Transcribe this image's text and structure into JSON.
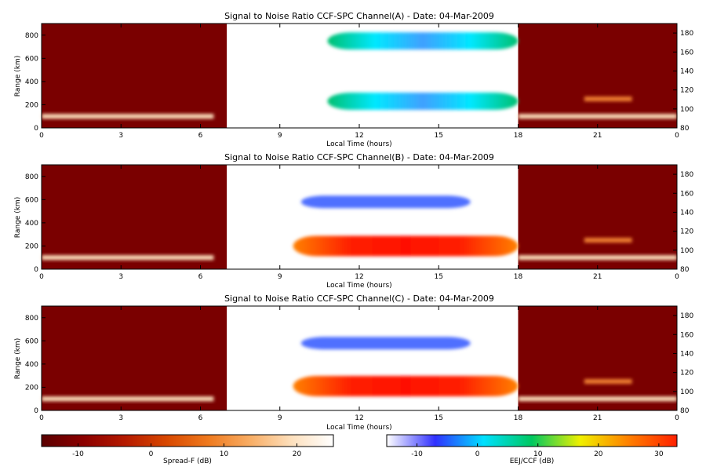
{
  "colors": {
    "night_background": "#7a0000",
    "day_background": "#ffffff",
    "spread_f_scale": [
      "#5a0000",
      "#8b0000",
      "#b51a00",
      "#d84800",
      "#ef7a1e",
      "#f8ad64",
      "#fde0bd",
      "#ffffff"
    ],
    "eej_ccf_scale": [
      "#ffffff",
      "#3030ff",
      "#00e0ff",
      "#00c860",
      "#f0f000",
      "#ff8000",
      "#ff2000"
    ]
  },
  "chart_data": [
    {
      "type": "heatmap",
      "title": "Signal to Noise Ratio CCF-SPC Channel(A) - Date: 04-Mar-2009",
      "xlabel": "Local Time (hours)",
      "ylabel": "Range (km)",
      "xlim": [
        0,
        24
      ],
      "ylim": [
        0,
        900
      ],
      "y2lim": [
        80,
        190
      ],
      "x_ticks": [
        "0",
        "3",
        "6",
        "9",
        "12",
        "15",
        "18",
        "21",
        "0"
      ],
      "y_ticks": [
        "0",
        "200",
        "400",
        "600",
        "800"
      ],
      "y2_ticks": [
        "80",
        "100",
        "120",
        "140",
        "160",
        "180"
      ],
      "day_window_hours": [
        7,
        18
      ],
      "night_echoes": [
        {
          "t0": 0,
          "t1": 6.5,
          "range_km": 100,
          "spread_f_db": 22
        },
        {
          "t0": 18,
          "t1": 24,
          "range_km": 100,
          "spread_f_db": 22
        },
        {
          "t0": 20.5,
          "t1": 22.3,
          "range_km": 250,
          "spread_f_db": 16
        }
      ],
      "day_echoes": [
        {
          "t0": 10.8,
          "t1": 18,
          "range_km": 750,
          "eej_ccf_db": 5
        },
        {
          "t0": 10.8,
          "t1": 18,
          "range_km": 230,
          "eej_ccf_db": 5
        }
      ]
    },
    {
      "type": "heatmap",
      "title": "Signal to Noise Ratio CCF-SPC Channel(B) - Date: 04-Mar-2009",
      "xlabel": "Local Time (hours)",
      "ylabel": "Range (km)",
      "xlim": [
        0,
        24
      ],
      "ylim": [
        0,
        900
      ],
      "y2lim": [
        80,
        190
      ],
      "x_ticks": [
        "0",
        "3",
        "6",
        "9",
        "12",
        "15",
        "18",
        "21",
        "0"
      ],
      "y_ticks": [
        "0",
        "200",
        "400",
        "600",
        "800"
      ],
      "y2_ticks": [
        "80",
        "100",
        "120",
        "140",
        "160",
        "180"
      ],
      "day_window_hours": [
        7,
        18
      ],
      "night_echoes": [
        {
          "t0": 0,
          "t1": 6.5,
          "range_km": 100,
          "spread_f_db": 22
        },
        {
          "t0": 18,
          "t1": 24,
          "range_km": 100,
          "spread_f_db": 22
        },
        {
          "t0": 20.5,
          "t1": 22.3,
          "range_km": 250,
          "spread_f_db": 16
        }
      ],
      "day_echoes": [
        {
          "t0": 9.8,
          "t1": 16.2,
          "range_km": 580,
          "eej_ccf_db": 0
        },
        {
          "t0": 9.5,
          "t1": 18,
          "range_km": 200,
          "eej_ccf_db": 30
        }
      ]
    },
    {
      "type": "heatmap",
      "title": "Signal to Noise Ratio CCF-SPC Channel(C) - Date: 04-Mar-2009",
      "xlabel": "Local Time (hours)",
      "ylabel": "Range (km)",
      "xlim": [
        0,
        24
      ],
      "ylim": [
        0,
        900
      ],
      "y2lim": [
        80,
        190
      ],
      "x_ticks": [
        "0",
        "3",
        "6",
        "9",
        "12",
        "15",
        "18",
        "21",
        "0"
      ],
      "y_ticks": [
        "0",
        "200",
        "400",
        "600",
        "800"
      ],
      "y2_ticks": [
        "80",
        "100",
        "120",
        "140",
        "160",
        "180"
      ],
      "day_window_hours": [
        7,
        18
      ],
      "night_echoes": [
        {
          "t0": 0,
          "t1": 6.5,
          "range_km": 100,
          "spread_f_db": 22
        },
        {
          "t0": 18,
          "t1": 24,
          "range_km": 100,
          "spread_f_db": 22
        },
        {
          "t0": 20.5,
          "t1": 22.3,
          "range_km": 250,
          "spread_f_db": 16
        }
      ],
      "day_echoes": [
        {
          "t0": 9.8,
          "t1": 16.2,
          "range_km": 580,
          "eej_ccf_db": 0
        },
        {
          "t0": 9.5,
          "t1": 18,
          "range_km": 210,
          "eej_ccf_db": 30
        }
      ]
    }
  ],
  "colorbars": [
    {
      "label": "Spread-F (dB)",
      "ticks": [
        "-10",
        "0",
        "10",
        "20"
      ],
      "range_db": [
        -15,
        25
      ]
    },
    {
      "label": "EEJ/CCF (dB)",
      "ticks": [
        "-10",
        "0",
        "10",
        "20",
        "30"
      ],
      "range_db": [
        -15,
        33
      ]
    }
  ]
}
